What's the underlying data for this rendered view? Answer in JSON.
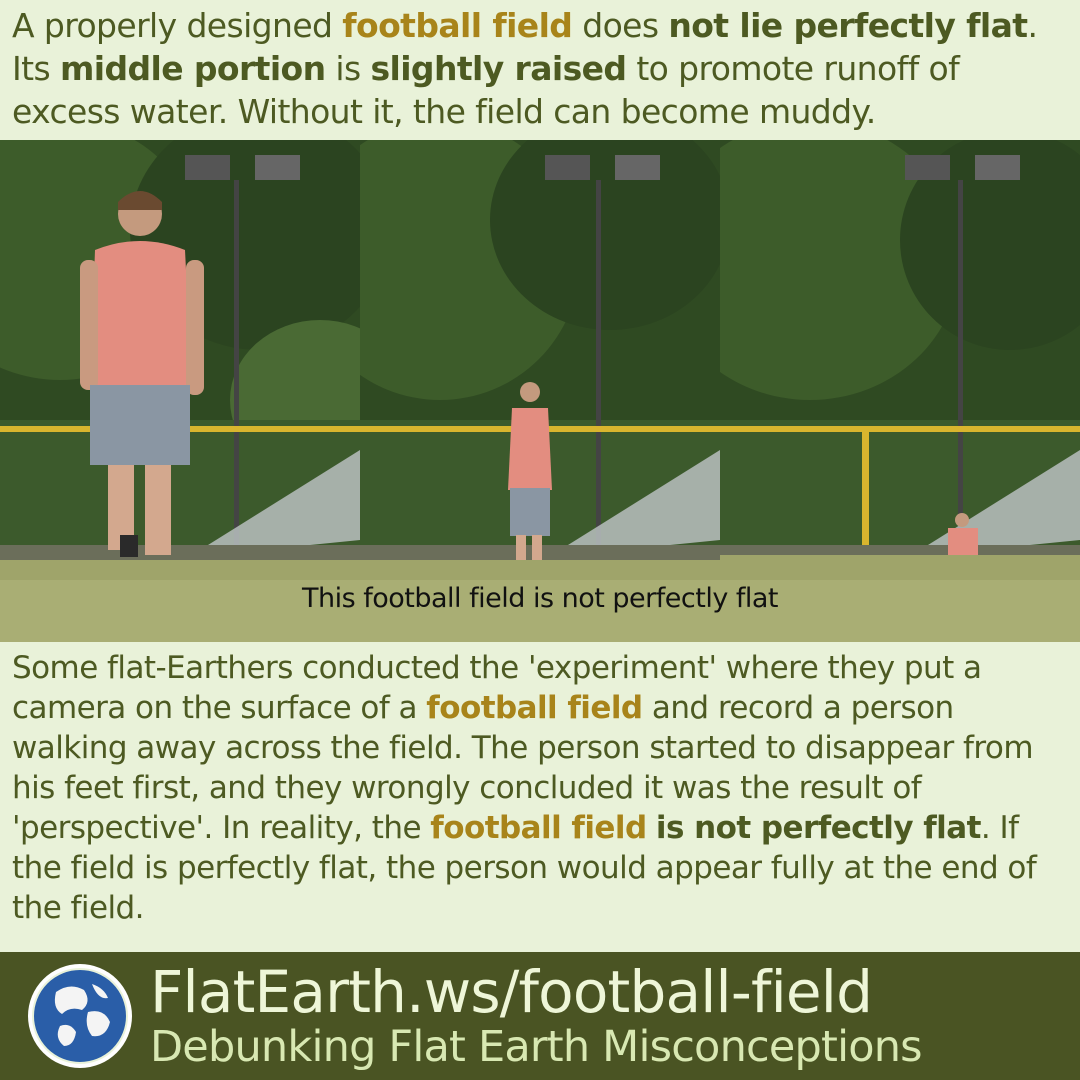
{
  "intro": {
    "t1": "A properly designed ",
    "h1": "football field",
    "t2": " does ",
    "h2": "not lie perfectly flat",
    "t3": ". Its ",
    "h3": "middle portion",
    "t4": " is ",
    "h4": "slightly raised",
    "t5": " to promote runoff of excess water. Without it, the field can become muddy."
  },
  "photo": {
    "caption": "This football field is not perfectly flat"
  },
  "body": {
    "t1": "Some flat-Earthers conducted the 'experiment' where they put a camera on the surface of a ",
    "h1": "football field",
    "t2": " and record a person walking away across the field. The person started to disappear from his feet first, and they wrongly concluded it was the result of 'perspective'. In reality, the ",
    "h2": "football field",
    "t3": " ",
    "h3": "is not perfectly flat",
    "t4": ". If the field is perfectly flat, the person would appear fully at the end of the field."
  },
  "footer": {
    "url": "FlatEarth.ws/football-field",
    "tagline": "Debunking Flat Earth Misconceptions"
  },
  "colors": {
    "background": "#e9f2d9",
    "text": "#4d5a22",
    "highlight": "#a8841a",
    "footer_bg": "#4a5423",
    "footer_text": "#eef6d8"
  },
  "icons": {
    "logo": "globe-logo-icon"
  }
}
